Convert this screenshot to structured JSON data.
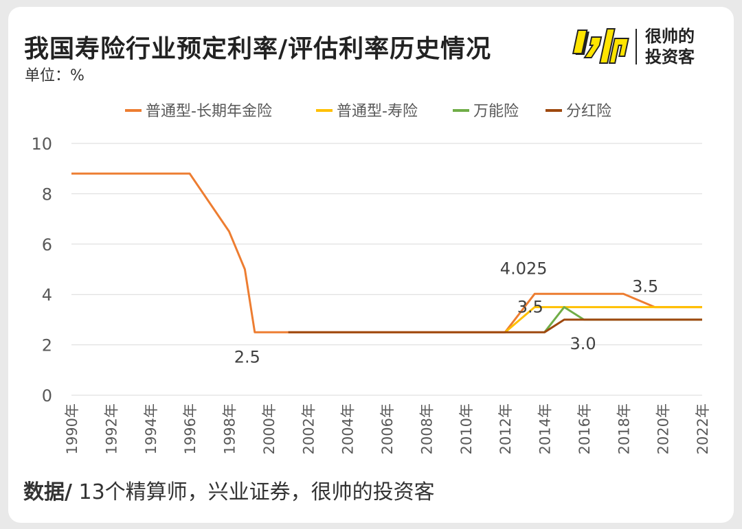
{
  "header": {
    "title": "我国寿险行业预定利率/评估利率历史情况",
    "unit": "单位：%",
    "brand_line1": "很帅的",
    "brand_line2": "投资客"
  },
  "footer": {
    "label": "数据/",
    "source": " 13个精算师，兴业证券，很帅的投资客"
  },
  "colors": {
    "annuity": "#ED7D31",
    "life": "#FFC000",
    "universal": "#70AD47",
    "dividend": "#9E480E",
    "logo_yellow": "#FFE400"
  },
  "chart_data": {
    "type": "line",
    "xlabel": "",
    "ylabel": "",
    "ylim": [
      0,
      10
    ],
    "yticks": [
      "0",
      "2",
      "4",
      "6",
      "8",
      "10"
    ],
    "xticks": [
      "1990年",
      "1992年",
      "1994年",
      "1996年",
      "1998年",
      "2000年",
      "2002年",
      "2004年",
      "2006年",
      "2008年",
      "2010年",
      "2012年",
      "2014年",
      "2016年",
      "2018年",
      "2020年",
      "2022年"
    ],
    "grid": true,
    "legend": "top",
    "series": [
      {
        "name": "普通型-长期年金险",
        "color": "#ED7D31",
        "points": [
          [
            1990,
            8.8
          ],
          [
            1996,
            8.8
          ],
          [
            1998,
            6.5
          ],
          [
            1998.8,
            5.0
          ],
          [
            1999.3,
            2.5
          ],
          [
            2012,
            2.5
          ],
          [
            2013.5,
            4.025
          ],
          [
            2018,
            4.025
          ],
          [
            2019.6,
            3.5
          ],
          [
            2022,
            3.5
          ]
        ]
      },
      {
        "name": "普通型-寿险",
        "color": "#FFC000",
        "points": [
          [
            2012,
            2.5
          ],
          [
            2013.5,
            3.5
          ],
          [
            2022,
            3.5
          ]
        ]
      },
      {
        "name": "万能险",
        "color": "#70AD47",
        "points": [
          [
            2014,
            2.5
          ],
          [
            2015,
            3.5
          ],
          [
            2016,
            3.0
          ],
          [
            2022,
            3.0
          ]
        ]
      },
      {
        "name": "分红险",
        "color": "#9E480E",
        "points": [
          [
            2001,
            2.5
          ],
          [
            2014,
            2.5
          ],
          [
            2015,
            3.0
          ],
          [
            2022,
            3.0
          ]
        ]
      }
    ],
    "annotations": [
      {
        "text": "2.5",
        "x": 1999.3,
        "y": 2.5
      },
      {
        "text": "4.025",
        "x": 2013.5,
        "y": 4.025
      },
      {
        "text": "3.5",
        "x": 2013,
        "y": 3.5
      },
      {
        "text": "3.5",
        "x": 2019.6,
        "y": 3.5
      },
      {
        "text": "3.0",
        "x": 2015.5,
        "y": 3.0
      }
    ]
  }
}
